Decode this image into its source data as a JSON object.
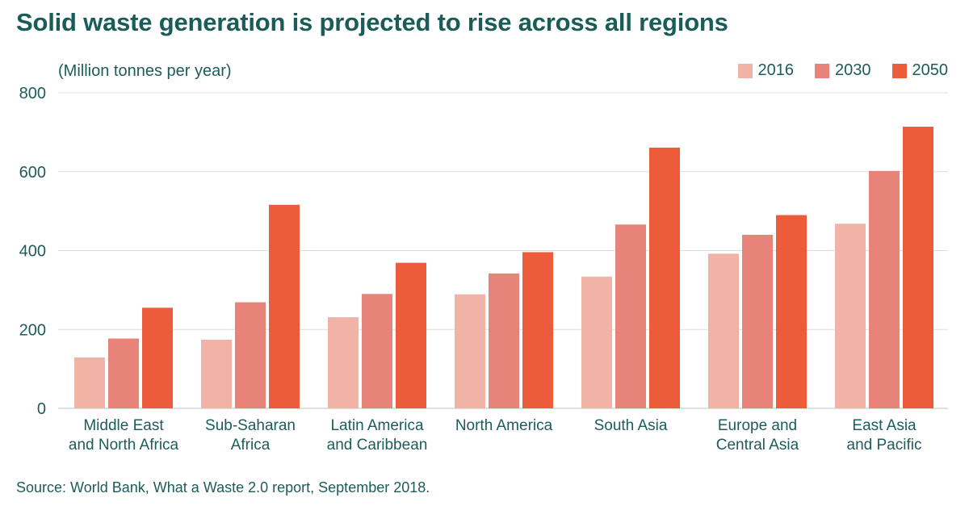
{
  "title": "Solid waste generation is projected to rise across all regions",
  "source": "Source: World Bank, What a Waste 2.0 report, September 2018.",
  "chart_data": {
    "type": "bar",
    "title": "Solid waste generation is projected to rise across all regions",
    "ylabel": "(Million tonnes per year)",
    "xlabel": "",
    "ylim": [
      0,
      800
    ],
    "yticks": [
      0,
      200,
      400,
      600,
      800
    ],
    "grid": true,
    "legend_position": "top-right",
    "categories": [
      [
        "Middle East",
        "and North Africa"
      ],
      [
        "Sub-Saharan",
        "Africa"
      ],
      [
        "Latin America",
        "and Caribbean"
      ],
      [
        "North America"
      ],
      [
        "South Asia"
      ],
      [
        "Europe and",
        "Central Asia"
      ],
      [
        "East Asia",
        "and Pacific"
      ]
    ],
    "series": [
      {
        "name": "2016",
        "color": "#f2b3a7",
        "values": [
          129,
          174,
          231,
          289,
          334,
          392,
          468
        ]
      },
      {
        "name": "2030",
        "color": "#e8837a",
        "values": [
          177,
          269,
          290,
          342,
          466,
          440,
          602
        ]
      },
      {
        "name": "2050",
        "color": "#ec5b3a",
        "values": [
          255,
          516,
          369,
          396,
          661,
          490,
          714
        ]
      }
    ]
  }
}
